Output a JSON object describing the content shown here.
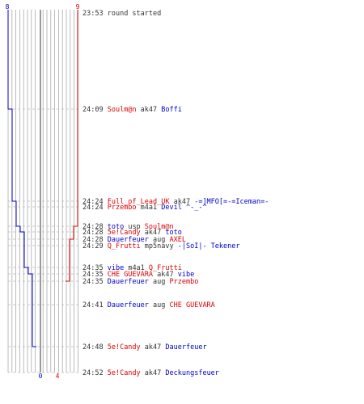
{
  "colors": {
    "team_blue": "#0000cc",
    "team_red": "#dd0000",
    "neutral_text": "#333333",
    "grid": "#aaaaaa",
    "center_line": "#555555",
    "dash": "#bbbbbb"
  },
  "chart_data": {
    "type": "line",
    "title": "",
    "players_per_team_max": 9,
    "series": [
      {
        "color": "team_blue",
        "steps": [
          {
            "row": 0,
            "value": 8
          },
          {
            "row": 1,
            "value": 7
          },
          {
            "row": 2,
            "value": 6
          },
          {
            "row": 4,
            "value": 5
          },
          {
            "row": 5,
            "value": 4
          },
          {
            "row": 8,
            "value": 3
          },
          {
            "row": 9,
            "value": 2
          },
          {
            "row": 12,
            "value": 1
          },
          {
            "row": 16,
            "value": 0
          }
        ]
      },
      {
        "color": "team_red",
        "steps": [
          {
            "row": 0,
            "value": 9
          },
          {
            "row": 4,
            "value": 8
          },
          {
            "row": 6,
            "value": 7
          },
          {
            "row": 10,
            "value": 6
          },
          {
            "row": 14,
            "value": 5
          },
          {
            "row": 15,
            "value": 4
          }
        ]
      }
    ],
    "start_labels": {
      "blue": "8",
      "red": "9"
    },
    "end_labels": {
      "blue": "0",
      "red": "4"
    },
    "events": [
      {
        "time": "23:53",
        "segments": [
          {
            "text": "round started",
            "color": "neutral_text"
          }
        ]
      },
      {
        "time": "24:09",
        "segments": [
          {
            "text": "Soulm@n",
            "color": "team_red"
          },
          {
            "text": " ak47 ",
            "color": "neutral_text"
          },
          {
            "text": "Boffi",
            "color": "team_blue"
          }
        ]
      },
      {
        "time": "24:24",
        "segments": [
          {
            "text": "Full_of_Lead_UK",
            "color": "team_red"
          },
          {
            "text": " ak47 ",
            "color": "neutral_text"
          },
          {
            "text": "-=]MFO[=-=Iceman=-",
            "color": "team_blue"
          }
        ]
      },
      {
        "time": "24:24",
        "segments": [
          {
            "text": "Przembo",
            "color": "team_red"
          },
          {
            "text": " m4a1 ",
            "color": "neutral_text"
          },
          {
            "text": "Devil ^-_-^",
            "color": "team_blue"
          }
        ]
      },
      {
        "time": "24:28",
        "segments": [
          {
            "text": "toto",
            "color": "team_blue"
          },
          {
            "text": " usp ",
            "color": "neutral_text"
          },
          {
            "text": "Soulm@n",
            "color": "team_red"
          }
        ]
      },
      {
        "time": "24:28",
        "segments": [
          {
            "text": "5e!Candy",
            "color": "team_red"
          },
          {
            "text": " ak47 ",
            "color": "neutral_text"
          },
          {
            "text": "toto",
            "color": "team_blue"
          }
        ]
      },
      {
        "time": "24:28",
        "segments": [
          {
            "text": "Dauerfeuer",
            "color": "team_blue"
          },
          {
            "text": " aug ",
            "color": "neutral_text"
          },
          {
            "text": "AXEL",
            "color": "team_red"
          }
        ]
      },
      {
        "time": "24:29",
        "segments": [
          {
            "text": "Q_Frutti",
            "color": "team_red"
          },
          {
            "text": " mp5navy ",
            "color": "neutral_text"
          },
          {
            "text": "-|SoI|- Tekener",
            "color": "team_blue"
          }
        ]
      },
      {
        "time": "24:35",
        "segments": [
          {
            "text": "vibe",
            "color": "team_blue"
          },
          {
            "text": " m4a1 ",
            "color": "neutral_text"
          },
          {
            "text": "Q_Frutti",
            "color": "team_red"
          }
        ]
      },
      {
        "time": "24:35",
        "segments": [
          {
            "text": "CHE GUEVARA",
            "color": "team_red"
          },
          {
            "text": " ak47 ",
            "color": "neutral_text"
          },
          {
            "text": "vibe",
            "color": "team_blue"
          }
        ]
      },
      {
        "time": "24:35",
        "segments": [
          {
            "text": "Dauerfeuer",
            "color": "team_blue"
          },
          {
            "text": " aug ",
            "color": "neutral_text"
          },
          {
            "text": "Przembo",
            "color": "team_red"
          }
        ]
      },
      {
        "time": "24:41",
        "segments": [
          {
            "text": "Dauerfeuer",
            "color": "team_blue"
          },
          {
            "text": " aug ",
            "color": "neutral_text"
          },
          {
            "text": "CHE GUEVARA",
            "color": "team_red"
          }
        ]
      },
      {
        "time": "24:48",
        "segments": [
          {
            "text": "5e!Candy",
            "color": "team_red"
          },
          {
            "text": " ak47 ",
            "color": "neutral_text"
          },
          {
            "text": "Dauerfeuer",
            "color": "team_blue"
          }
        ]
      },
      {
        "time": "24:52",
        "segments": [
          {
            "text": "5e!Candy",
            "color": "team_red"
          },
          {
            "text": " ak47 ",
            "color": "neutral_text"
          },
          {
            "text": "Deckungsfeuer",
            "color": "team_blue"
          }
        ]
      }
    ]
  }
}
